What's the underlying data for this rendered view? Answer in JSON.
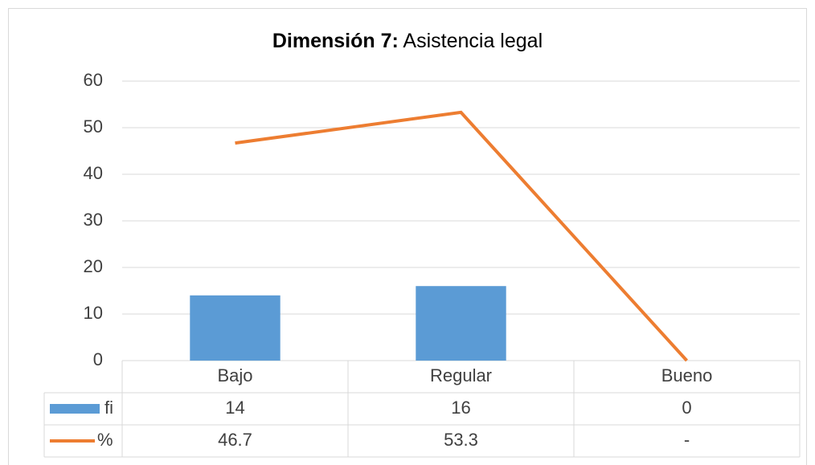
{
  "chart_data": {
    "type": "bar",
    "title": [
      "Dimensión 7:",
      "Asistencia legal"
    ],
    "categories": [
      "Bajo",
      "Regular",
      "Bueno"
    ],
    "series": [
      {
        "name": "fi",
        "type": "bar",
        "color": "#5b9bd5",
        "values": [
          14,
          16,
          0
        ]
      },
      {
        "name": "%",
        "type": "line",
        "color": "#ed7d31",
        "values": [
          46.7,
          53.3,
          0
        ],
        "value_labels": [
          "46.7",
          "53.3",
          "-"
        ]
      }
    ],
    "ylim": [
      0,
      60
    ],
    "yticks": [
      0,
      10,
      20,
      30,
      40,
      50,
      60
    ],
    "grid": true,
    "data_table": true
  }
}
